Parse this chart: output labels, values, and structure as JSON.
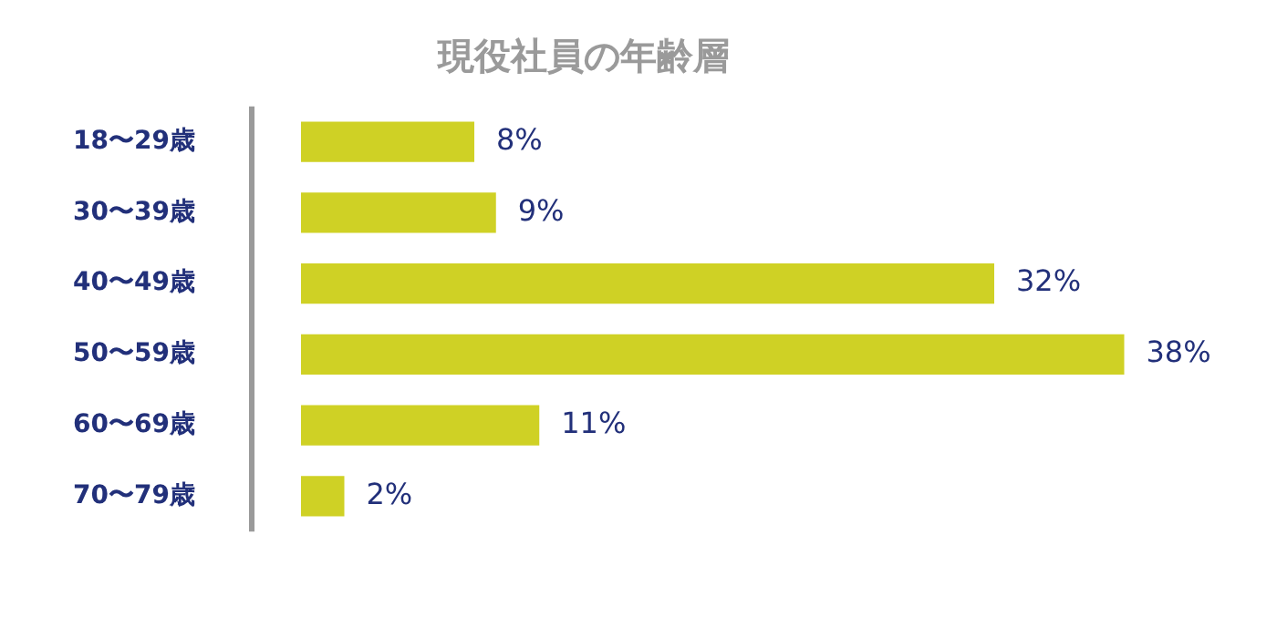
{
  "chart_data": {
    "type": "bar",
    "orientation": "horizontal",
    "title": "現役社員の年齢層",
    "categories": [
      "18〜29歳",
      "30〜39歳",
      "40〜49歳",
      "50〜59歳",
      "60〜69歳",
      "70〜79歳"
    ],
    "values": [
      8,
      9,
      32,
      38,
      11,
      2
    ],
    "value_labels": [
      "8%",
      "9%",
      "32%",
      "38%",
      "11%",
      "2%"
    ],
    "color": "#cfd125",
    "tick_labels": "y",
    "legend": false
  }
}
